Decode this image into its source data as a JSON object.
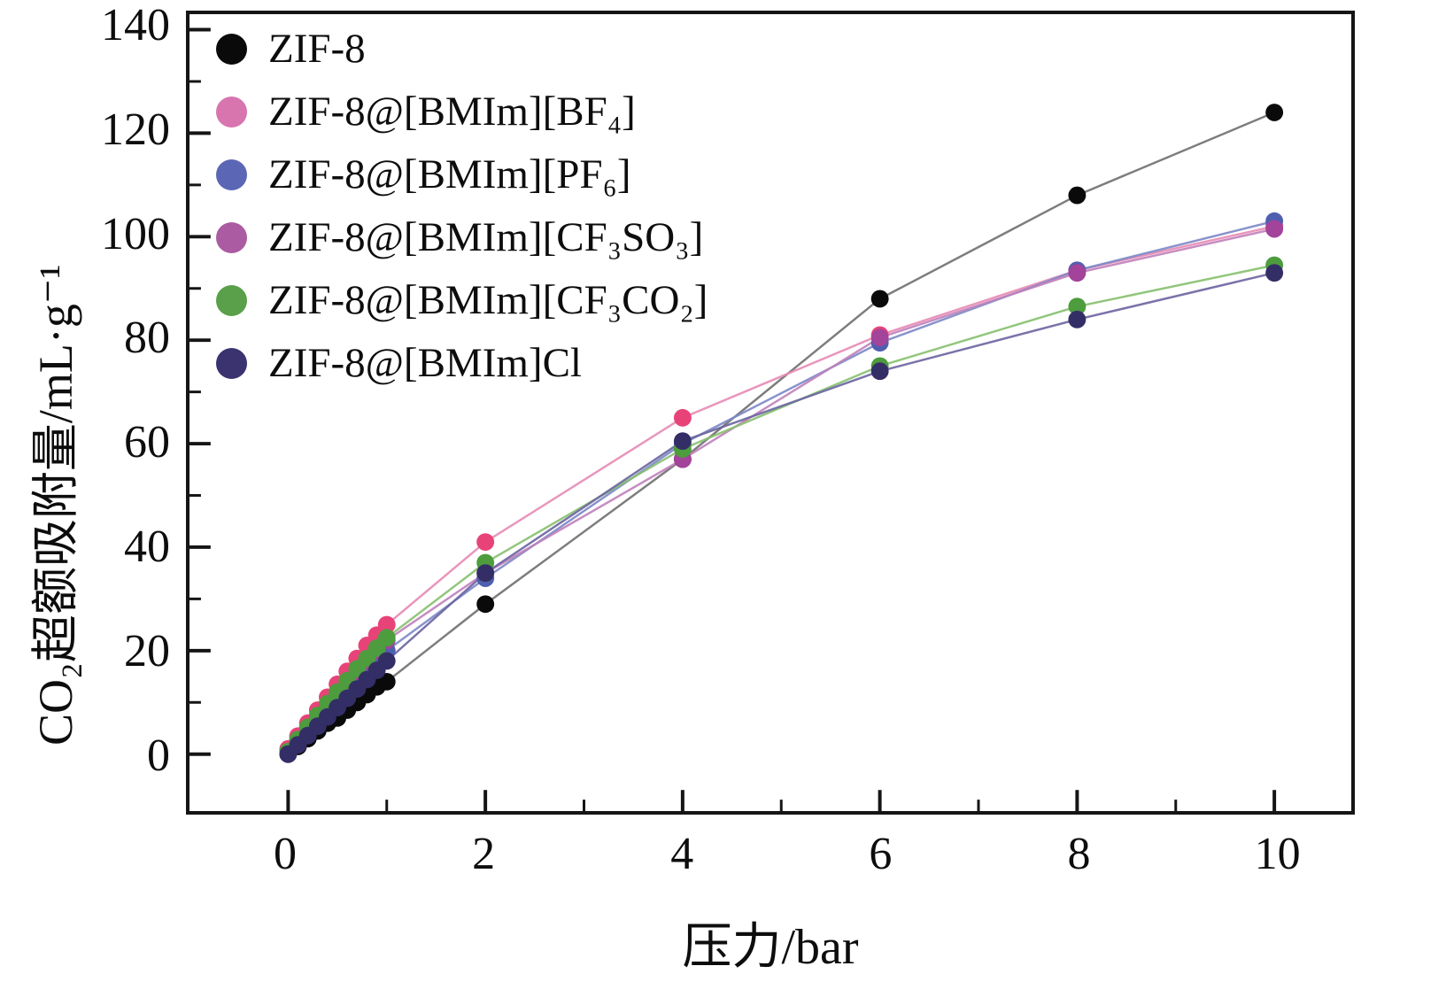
{
  "figure": {
    "background": "#ffffff"
  },
  "chart_data": {
    "type": "scatter",
    "title": "",
    "xlabel": "压力/bar",
    "ylabel": "CO₂超额吸附量/mL·g⁻¹",
    "xlim": [
      -1,
      10.78
    ],
    "ylim": [
      -11,
      143
    ],
    "x_ticks": [
      0,
      2,
      4,
      6,
      8,
      10
    ],
    "x_minor_ticks": [
      1,
      3,
      5,
      7,
      9
    ],
    "y_ticks": [
      0,
      20,
      40,
      60,
      80,
      100,
      120,
      140
    ],
    "y_minor_ticks": [
      10,
      30,
      50,
      70,
      90,
      110,
      130
    ],
    "grid": false,
    "legend_position": "upper-left",
    "marker_radius": 10,
    "x": [
      0,
      0.1,
      0.2,
      0.3,
      0.4,
      0.5,
      0.6,
      0.7,
      0.8,
      0.9,
      1,
      2,
      4,
      6,
      8,
      10
    ],
    "series": [
      {
        "name": "ZIF-8",
        "color": "#0a0a0a",
        "legend_color": "#0a0a0a",
        "line_color": "#6f6f6f",
        "values": [
          0,
          1.5,
          3,
          4.5,
          6,
          7,
          8.5,
          10,
          11.5,
          13,
          14,
          29,
          57,
          88,
          108,
          124
        ]
      },
      {
        "name": "ZIF-8@[BMIm][BF₄]",
        "color": "#e84378",
        "legend_color": "#d874ae",
        "line_color": "#e789b4",
        "values": [
          1,
          3.5,
          6,
          8.5,
          11,
          13.5,
          16,
          18.5,
          21,
          23,
          25,
          41,
          65,
          81,
          93.5,
          102
        ]
      },
      {
        "name": "ZIF-8@[BMIm][PF₆]",
        "color": "#4f5fb0",
        "legend_color": "#5b67b4",
        "line_color": "#7b87c6",
        "values": [
          0,
          2,
          4,
          6,
          8,
          10,
          12,
          14,
          16,
          18,
          20,
          34,
          60,
          79.5,
          93.5,
          103
        ]
      },
      {
        "name": "ZIF-8@[BMIm][CF₃SO₃]",
        "color": "#a3439a",
        "legend_color": "#aa5ba2",
        "line_color": "#c07fba",
        "values": [
          0.5,
          2.8,
          5,
          7.2,
          9.4,
          11.6,
          13.8,
          16,
          18,
          20,
          22,
          35,
          57,
          80.5,
          93,
          101.5
        ]
      },
      {
        "name": "ZIF-8@[BMIm][CF₃CO₂]",
        "color": "#4d9c3d",
        "legend_color": "#5aa04a",
        "line_color": "#86c06e",
        "values": [
          0.5,
          2.8,
          5.2,
          7.5,
          9.8,
          12,
          14.2,
          16.5,
          18.5,
          20.5,
          22.5,
          37,
          59,
          75,
          86.5,
          94.5
        ]
      },
      {
        "name": "ZIF-8@[BMIm]Cl",
        "color": "#342e66",
        "legend_color": "#3a3370",
        "line_color": "#6a64a0",
        "values": [
          0,
          1.8,
          3.6,
          5.4,
          7.2,
          9,
          10.8,
          12.6,
          14.4,
          16.2,
          18,
          35,
          60.5,
          74,
          84,
          93
        ]
      }
    ]
  }
}
